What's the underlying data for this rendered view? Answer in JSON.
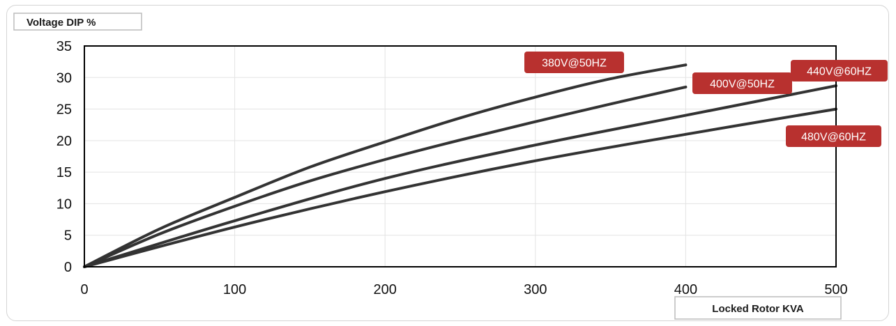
{
  "chart_data": {
    "type": "line",
    "title": "",
    "ylabel": "Voltage DIP %",
    "xlabel": "Locked Rotor KVA",
    "xlim": [
      0,
      500
    ],
    "ylim": [
      0,
      35
    ],
    "x_ticks": [
      0,
      100,
      200,
      300,
      400,
      500
    ],
    "y_ticks": [
      0,
      5,
      10,
      15,
      20,
      25,
      30,
      35
    ],
    "grid": true,
    "line_color": "#333333",
    "label_color": "#b8312f",
    "series": [
      {
        "name": "380V@50HZ",
        "x": [
          0,
          50,
          100,
          150,
          200,
          250,
          300,
          350,
          400
        ],
        "y": [
          0,
          6.0,
          11.0,
          15.8,
          19.8,
          23.6,
          26.9,
          29.8,
          32.0
        ]
      },
      {
        "name": "400V@50HZ",
        "x": [
          0,
          50,
          100,
          150,
          200,
          250,
          300,
          350,
          400
        ],
        "y": [
          0,
          5.2,
          9.6,
          13.6,
          17.0,
          20.1,
          23.0,
          25.8,
          28.5
        ]
      },
      {
        "name": "440V@60HZ",
        "x": [
          0,
          100,
          200,
          300,
          400,
          500
        ],
        "y": [
          0,
          7.3,
          14.0,
          19.3,
          24.0,
          28.7
        ]
      },
      {
        "name": "480V@60HZ",
        "x": [
          0,
          100,
          200,
          300,
          400,
          500
        ],
        "y": [
          0,
          6.3,
          11.9,
          16.8,
          21.0,
          25.0
        ]
      }
    ]
  }
}
